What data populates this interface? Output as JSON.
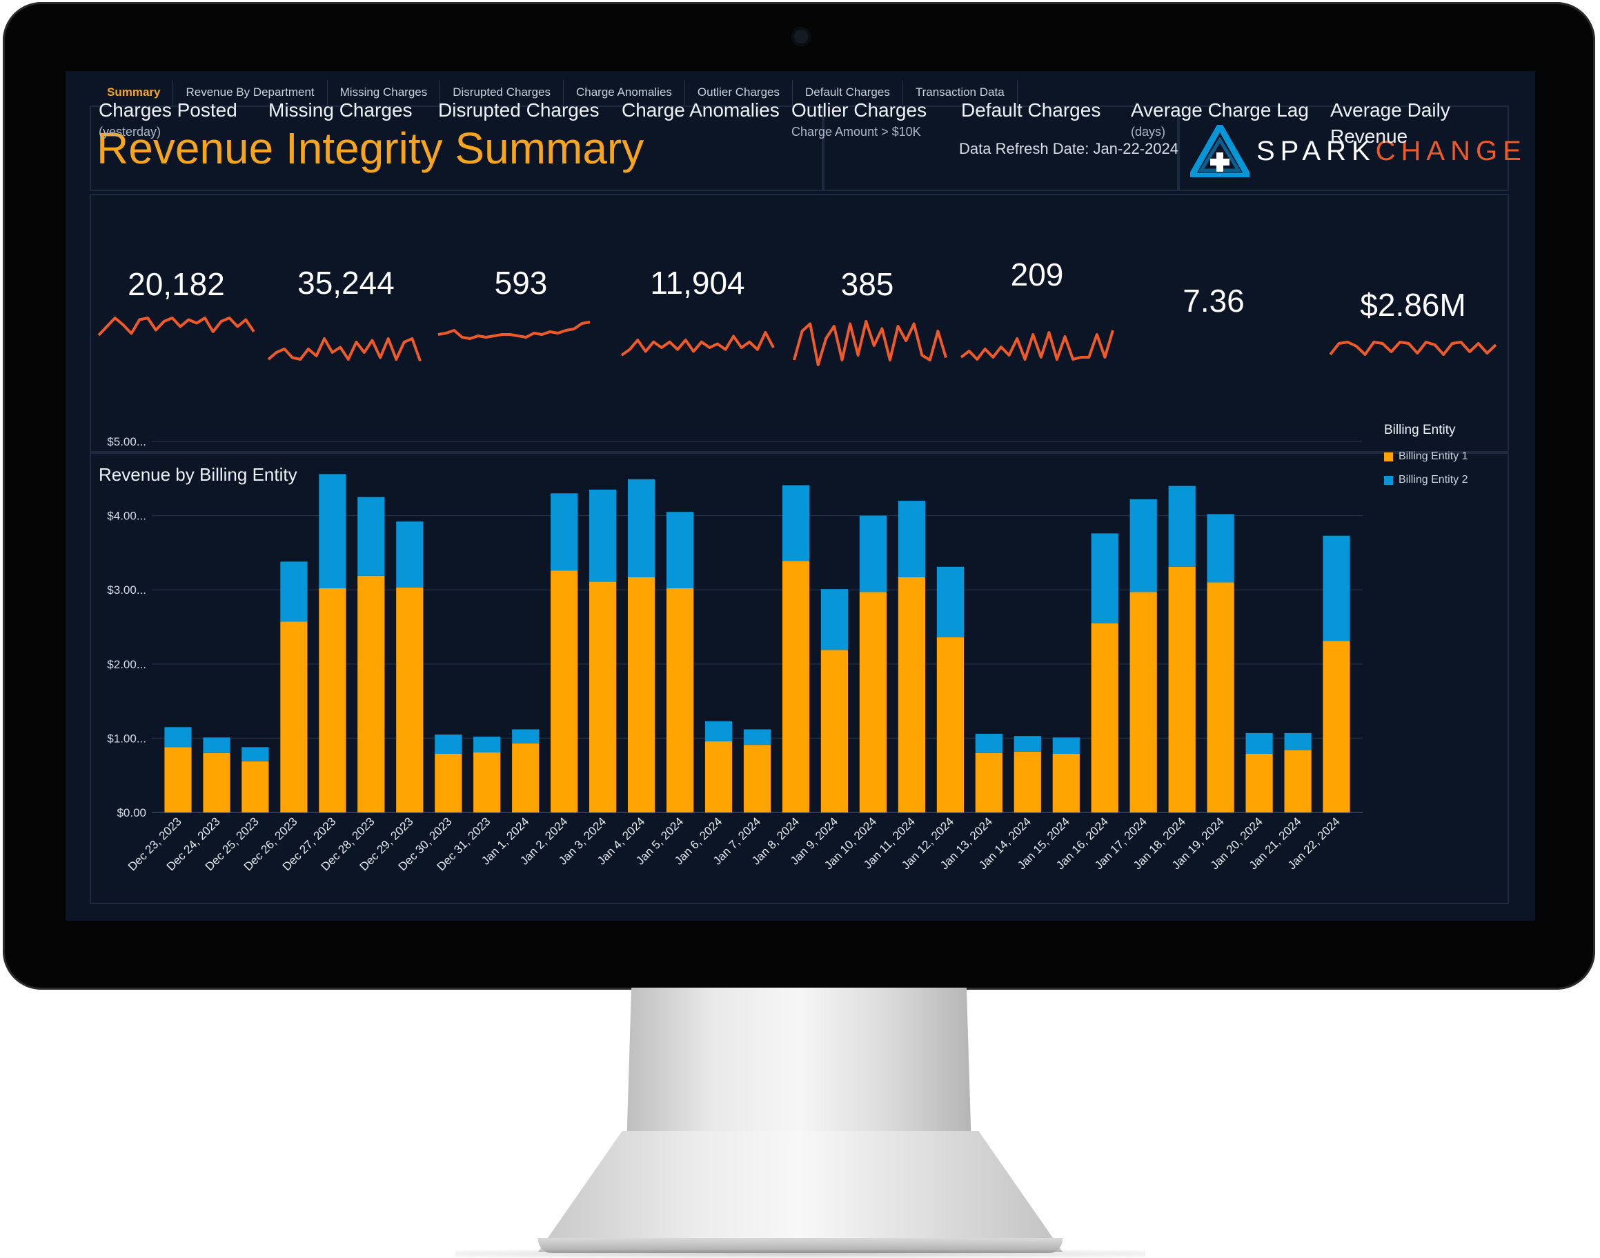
{
  "tabs": [
    {
      "label": "Summary",
      "active": true
    },
    {
      "label": "Revenue By Department",
      "active": false
    },
    {
      "label": "Missing Charges",
      "active": false
    },
    {
      "label": "Disrupted Charges",
      "active": false
    },
    {
      "label": "Charge Anomalies",
      "active": false
    },
    {
      "label": "Outlier Charges",
      "active": false
    },
    {
      "label": "Default Charges",
      "active": false
    },
    {
      "label": "Transaction Data",
      "active": false
    }
  ],
  "header": {
    "title": "Revenue Integrity Summary",
    "refresh": "Data Refresh Date: Jan-22-2024",
    "logo_spark": "SPARK",
    "logo_change": "CHANGE"
  },
  "kpis": [
    {
      "label": "Charges Posted",
      "sub": "(yesterday)",
      "value": "20,182"
    },
    {
      "label": "Missing Charges",
      "sub": "",
      "value": "35,244"
    },
    {
      "label": "Disrupted Charges",
      "sub": "",
      "value": "593"
    },
    {
      "label": "Charge Anomalies",
      "sub": "",
      "value": "11,904"
    },
    {
      "label": "Outlier Charges",
      "sub": "Charge Amount > $10K",
      "value": "385"
    },
    {
      "label": "Default Charges",
      "sub": "",
      "value": "209"
    },
    {
      "label": "Average Charge Lag",
      "sub": "(days)",
      "value": "7.36"
    },
    {
      "label": "Average Daily",
      "label2": "Revenue",
      "sub": "",
      "value": "$2.86M"
    }
  ],
  "colors": {
    "accent": "#f7a51c",
    "sparkline": "#f05a28",
    "entity1": "#ffa400",
    "entity2": "#0796d8",
    "background": "#0b1526"
  },
  "chart_data": {
    "type": "bar",
    "stacked": true,
    "title": "Revenue by Billing Entity",
    "legend_title": "Billing Entity",
    "legend_position": "right",
    "ylim": [
      0,
      5
    ],
    "yticks": [
      "$0.00",
      "$1.00...",
      "$2.00...",
      "$3.00...",
      "$4.00...",
      "$5.00..."
    ],
    "grid": true,
    "categories": [
      "Dec 23, 2023",
      "Dec 24, 2023",
      "Dec 25, 2023",
      "Dec 26, 2023",
      "Dec 27, 2023",
      "Dec 28, 2023",
      "Dec 29, 2023",
      "Dec 30, 2023",
      "Dec 31, 2023",
      "Jan 1, 2024",
      "Jan 2, 2024",
      "Jan 3, 2024",
      "Jan 4, 2024",
      "Jan 5, 2024",
      "Jan 6, 2024",
      "Jan 7, 2024",
      "Jan 8, 2024",
      "Jan 9, 2024",
      "Jan 10, 2024",
      "Jan 11, 2024",
      "Jan 12, 2024",
      "Jan 13, 2024",
      "Jan 14, 2024",
      "Jan 15, 2024",
      "Jan 16, 2024",
      "Jan 17, 2024",
      "Jan 18, 2024",
      "Jan 19, 2024",
      "Jan 20, 2024",
      "Jan 21, 2024",
      "Jan 22, 2024"
    ],
    "series": [
      {
        "name": "Billing Entity 1",
        "values": [
          0.88,
          0.8,
          0.69,
          2.57,
          3.02,
          3.19,
          3.03,
          0.79,
          0.81,
          0.93,
          3.26,
          3.11,
          3.17,
          3.02,
          0.96,
          0.91,
          3.39,
          2.19,
          2.97,
          3.17,
          2.36,
          0.8,
          0.82,
          0.79,
          2.55,
          2.97,
          3.31,
          3.1,
          0.79,
          0.84,
          2.31
        ]
      },
      {
        "name": "Billing Entity 2",
        "values": [
          0.27,
          0.21,
          0.19,
          0.81,
          1.54,
          1.06,
          0.89,
          0.26,
          0.21,
          0.19,
          1.04,
          1.24,
          1.32,
          1.03,
          0.27,
          0.21,
          1.02,
          0.82,
          1.03,
          1.03,
          0.95,
          0.26,
          0.21,
          0.22,
          1.21,
          1.25,
          1.09,
          0.92,
          0.28,
          0.23,
          1.42
        ]
      }
    ]
  },
  "sparklines": [
    [
      0.3,
      0.55,
      0.8,
      0.6,
      0.35,
      0.75,
      0.8,
      0.45,
      0.7,
      0.8,
      0.55,
      0.75,
      0.65,
      0.8,
      0.4,
      0.7,
      0.8,
      0.55,
      0.75,
      0.4
    ],
    [
      0.2,
      0.4,
      0.5,
      0.25,
      0.2,
      0.5,
      0.3,
      0.8,
      0.4,
      0.55,
      0.2,
      0.7,
      0.4,
      0.75,
      0.25,
      0.8,
      0.2,
      0.7,
      0.8,
      0.15
    ],
    [
      0.4,
      0.45,
      0.55,
      0.3,
      0.25,
      0.35,
      0.3,
      0.35,
      0.4,
      0.4,
      0.35,
      0.3,
      0.45,
      0.4,
      0.5,
      0.45,
      0.55,
      0.6,
      0.8,
      0.85
    ],
    [
      0.2,
      0.35,
      0.6,
      0.3,
      0.55,
      0.4,
      0.55,
      0.35,
      0.6,
      0.3,
      0.55,
      0.4,
      0.5,
      0.35,
      0.7,
      0.4,
      0.55,
      0.35,
      0.8,
      0.4
    ],
    [
      0.2,
      0.8,
      0.95,
      0.1,
      0.65,
      0.9,
      0.2,
      0.95,
      0.3,
      1.0,
      0.5,
      0.85,
      0.2,
      0.9,
      0.6,
      0.95,
      0.3,
      0.2,
      0.8,
      0.25
    ],
    [
      0.3,
      0.45,
      0.25,
      0.5,
      0.3,
      0.55,
      0.35,
      0.75,
      0.25,
      0.85,
      0.3,
      0.9,
      0.25,
      0.8,
      0.25,
      0.3,
      0.3,
      0.85,
      0.3,
      0.95
    ],
    [],
    [
      0.3,
      0.7,
      0.75,
      0.6,
      0.3,
      0.75,
      0.7,
      0.4,
      0.75,
      0.7,
      0.35,
      0.75,
      0.65,
      0.3,
      0.7,
      0.75,
      0.4,
      0.7,
      0.35,
      0.65
    ]
  ]
}
